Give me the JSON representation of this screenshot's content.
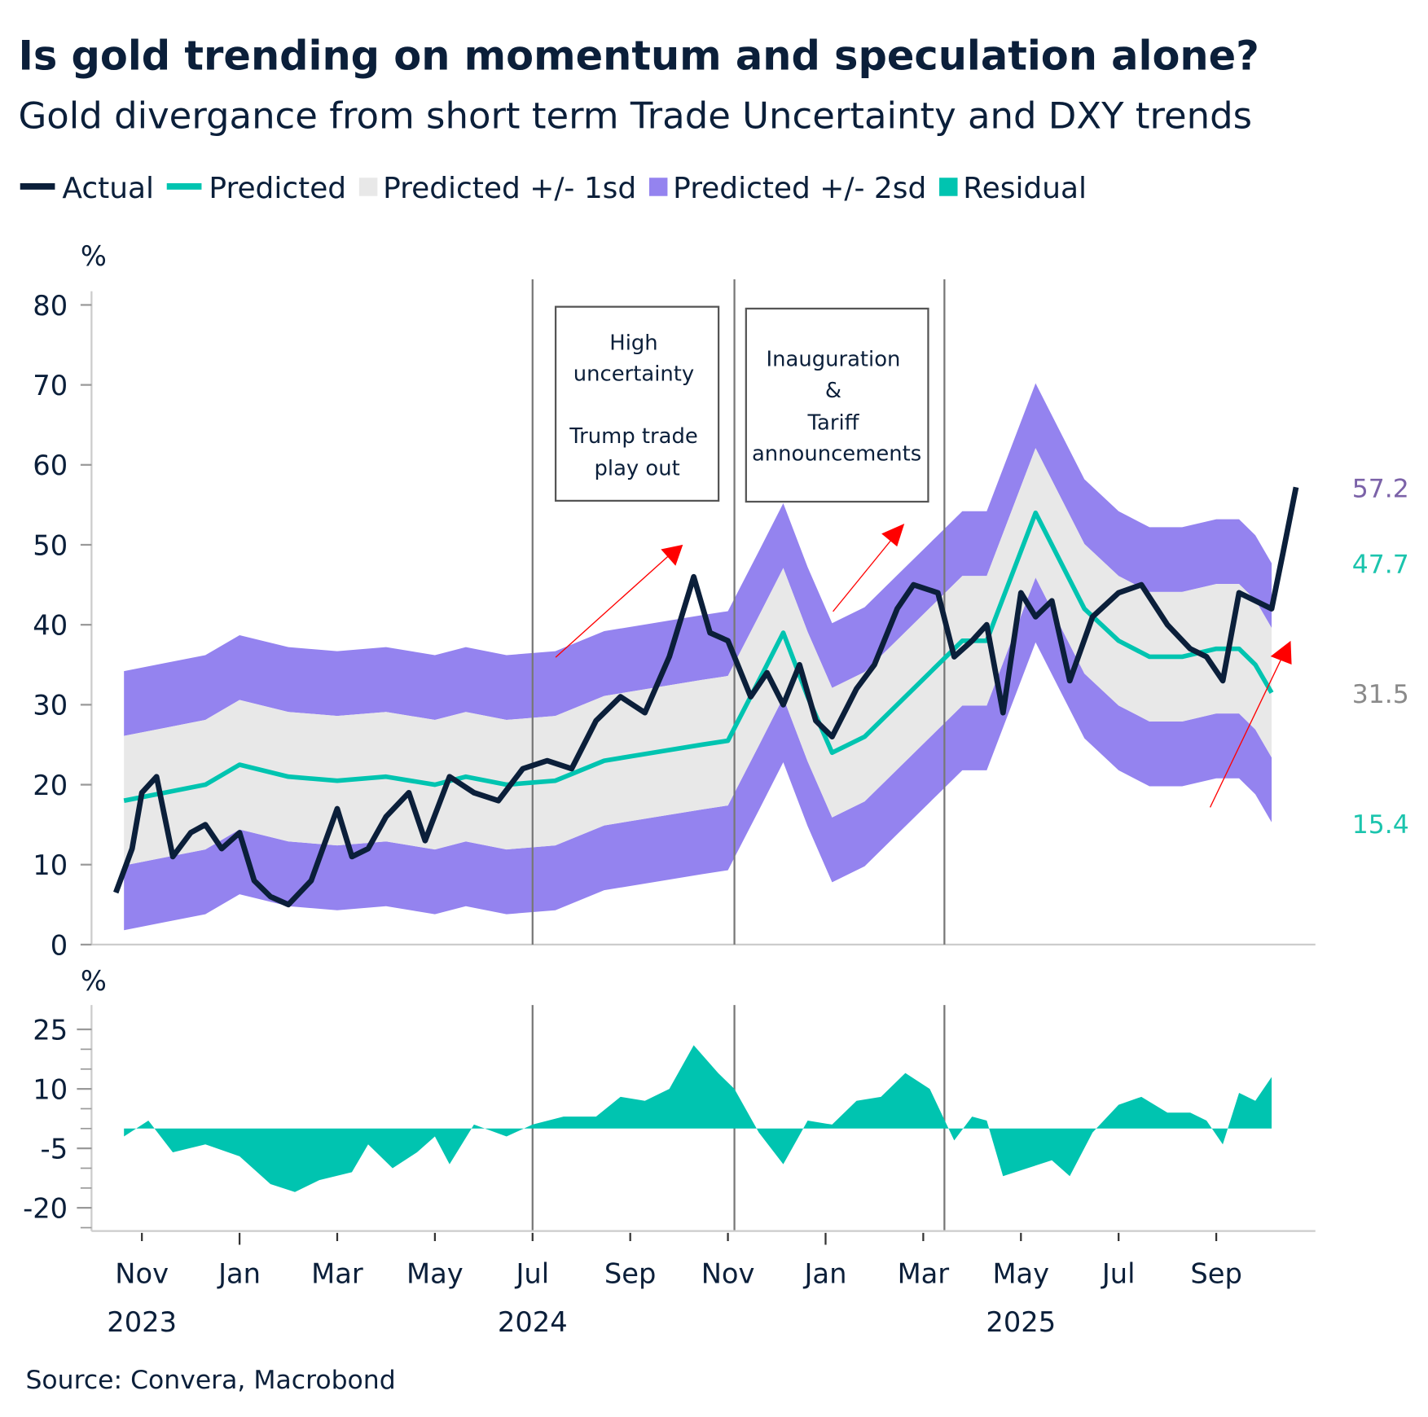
{
  "header": {
    "title": "Is gold trending on momentum and speculation alone?",
    "subtitle": "Gold divergance from short term Trade Uncertainty and DXY trends"
  },
  "legend": [
    {
      "label": "Actual",
      "color": "#0b1f3a",
      "shape": "line"
    },
    {
      "label": "Predicted",
      "color": "#00c4b0",
      "shape": "line"
    },
    {
      "label": "Predicted +/- 1sd",
      "color": "#e8e8e8",
      "shape": "square"
    },
    {
      "label": "Predicted +/- 2sd",
      "color": "#9483ef",
      "shape": "square"
    },
    {
      "label": "Residual",
      "color": "#00c4b0",
      "shape": "square"
    }
  ],
  "source": "Source: Convera, Macrobond",
  "chart_data": [
    {
      "type": "line",
      "panel": "main",
      "ylabel": "%",
      "ylim": [
        0,
        80
      ],
      "yticks": [
        "0",
        "10",
        "20",
        "30",
        "40",
        "50",
        "60",
        "70",
        "80"
      ],
      "xticks": [
        {
          "date": "2023-11-01",
          "label": "Nov",
          "year": "2023"
        },
        {
          "date": "2024-01-01",
          "label": "Jan"
        },
        {
          "date": "2024-03-01",
          "label": "Mar"
        },
        {
          "date": "2024-05-01",
          "label": "May"
        },
        {
          "date": "2024-07-01",
          "label": "Jul",
          "year": "2024"
        },
        {
          "date": "2024-09-01",
          "label": "Sep"
        },
        {
          "date": "2024-11-01",
          "label": "Nov"
        },
        {
          "date": "2025-01-01",
          "label": "Jan"
        },
        {
          "date": "2025-03-01",
          "label": "Mar"
        },
        {
          "date": "2025-05-01",
          "label": "May",
          "year": "2025"
        },
        {
          "date": "2025-07-01",
          "label": "Jul"
        },
        {
          "date": "2025-09-01",
          "label": "Sep"
        }
      ],
      "event_lines": [
        "2024-07-01",
        "2024-11-05",
        "2025-03-14"
      ],
      "annotations": [
        {
          "lines": [
            "High",
            "uncertainty",
            "",
            "Trump trade",
            "play out"
          ]
        },
        {
          "lines": [
            "Inauguration",
            "&",
            "Tariff",
            "announcements"
          ]
        }
      ],
      "end_labels": [
        {
          "text": "57.2",
          "color": "#7b62a8"
        },
        {
          "text": "47.7",
          "color": "#1bc4ad"
        },
        {
          "text": "31.5",
          "color": "#8a8a8a"
        },
        {
          "text": "15.4",
          "color": "#1bc4ad"
        }
      ],
      "sd": 8.1,
      "series": [
        {
          "name": "Actual",
          "color": "#0b1f3a",
          "points": [
            [
              "2023-10-15",
              6.5
            ],
            [
              "2023-10-25",
              12
            ],
            [
              "2023-11-01",
              19
            ],
            [
              "2023-11-10",
              21
            ],
            [
              "2023-11-20",
              11
            ],
            [
              "2023-12-01",
              14
            ],
            [
              "2023-12-10",
              15
            ],
            [
              "2023-12-20",
              12
            ],
            [
              "2024-01-01",
              14
            ],
            [
              "2024-01-10",
              8
            ],
            [
              "2024-01-20",
              6
            ],
            [
              "2024-02-01",
              5
            ],
            [
              "2024-02-15",
              8
            ],
            [
              "2024-03-01",
              17
            ],
            [
              "2024-03-10",
              11
            ],
            [
              "2024-03-20",
              12
            ],
            [
              "2024-04-01",
              16
            ],
            [
              "2024-04-15",
              19
            ],
            [
              "2024-04-25",
              13
            ],
            [
              "2024-05-10",
              21
            ],
            [
              "2024-05-25",
              19
            ],
            [
              "2024-06-10",
              18
            ],
            [
              "2024-06-25",
              22
            ],
            [
              "2024-07-10",
              23
            ],
            [
              "2024-07-25",
              22
            ],
            [
              "2024-08-10",
              28
            ],
            [
              "2024-08-25",
              31
            ],
            [
              "2024-09-10",
              29
            ],
            [
              "2024-09-25",
              36
            ],
            [
              "2024-10-10",
              46
            ],
            [
              "2024-10-20",
              39
            ],
            [
              "2024-11-01",
              38
            ],
            [
              "2024-11-15",
              31
            ],
            [
              "2024-11-25",
              34
            ],
            [
              "2024-12-05",
              30
            ],
            [
              "2024-12-15",
              35
            ],
            [
              "2024-12-25",
              28
            ],
            [
              "2025-01-05",
              26
            ],
            [
              "2025-01-20",
              32
            ],
            [
              "2025-02-01",
              35
            ],
            [
              "2025-02-15",
              42
            ],
            [
              "2025-02-25",
              45
            ],
            [
              "2025-03-10",
              44
            ],
            [
              "2025-03-20",
              36
            ],
            [
              "2025-04-01",
              38
            ],
            [
              "2025-04-10",
              40
            ],
            [
              "2025-04-20",
              29
            ],
            [
              "2025-05-01",
              44
            ],
            [
              "2025-05-10",
              41
            ],
            [
              "2025-05-20",
              43
            ],
            [
              "2025-06-01",
              33
            ],
            [
              "2025-06-15",
              41
            ],
            [
              "2025-07-01",
              44
            ],
            [
              "2025-07-15",
              45
            ],
            [
              "2025-08-01",
              40
            ],
            [
              "2025-08-15",
              37
            ],
            [
              "2025-08-25",
              36
            ],
            [
              "2025-09-05",
              33
            ],
            [
              "2025-09-15",
              44
            ],
            [
              "2025-09-25",
              43
            ],
            [
              "2025-10-05",
              42
            ],
            [
              "2025-10-12",
              49
            ],
            [
              "2025-10-20",
              57.2
            ]
          ]
        },
        {
          "name": "Predicted",
          "color": "#00c4b0",
          "points": [
            [
              "2023-10-20",
              18
            ],
            [
              "2023-11-15",
              19
            ],
            [
              "2023-12-10",
              20
            ],
            [
              "2024-01-01",
              22.5
            ],
            [
              "2024-02-01",
              21
            ],
            [
              "2024-03-01",
              20.5
            ],
            [
              "2024-04-01",
              21
            ],
            [
              "2024-05-01",
              20
            ],
            [
              "2024-05-20",
              21
            ],
            [
              "2024-06-15",
              20
            ],
            [
              "2024-07-15",
              20.5
            ],
            [
              "2024-08-15",
              23
            ],
            [
              "2024-09-15",
              24
            ],
            [
              "2024-10-15",
              25
            ],
            [
              "2024-11-01",
              25.5
            ],
            [
              "2024-11-20",
              33
            ],
            [
              "2024-12-05",
              39
            ],
            [
              "2024-12-20",
              31
            ],
            [
              "2025-01-05",
              24
            ],
            [
              "2025-01-25",
              26
            ],
            [
              "2025-02-15",
              30
            ],
            [
              "2025-03-10",
              35
            ],
            [
              "2025-03-25",
              38
            ],
            [
              "2025-04-10",
              38
            ],
            [
              "2025-04-25",
              46
            ],
            [
              "2025-05-10",
              54
            ],
            [
              "2025-05-25",
              48
            ],
            [
              "2025-06-10",
              42
            ],
            [
              "2025-07-01",
              38
            ],
            [
              "2025-07-20",
              36
            ],
            [
              "2025-08-10",
              36
            ],
            [
              "2025-09-01",
              37
            ],
            [
              "2025-09-15",
              37
            ],
            [
              "2025-09-25",
              35
            ],
            [
              "2025-10-05",
              31.5
            ]
          ]
        }
      ]
    },
    {
      "type": "area",
      "panel": "residual",
      "ylabel": "%",
      "ylim": [
        -25,
        30
      ],
      "yticks": [
        "25",
        "10",
        "-5",
        "-20"
      ],
      "series": [
        {
          "name": "Residual",
          "color": "#00c4b0",
          "points": [
            [
              "2023-10-20",
              -2
            ],
            [
              "2023-11-05",
              2
            ],
            [
              "2023-11-20",
              -6
            ],
            [
              "2023-12-10",
              -4
            ],
            [
              "2024-01-01",
              -7
            ],
            [
              "2024-01-20",
              -14
            ],
            [
              "2024-02-05",
              -16
            ],
            [
              "2024-02-20",
              -13
            ],
            [
              "2024-03-10",
              -11
            ],
            [
              "2024-03-20",
              -4
            ],
            [
              "2024-04-05",
              -10
            ],
            [
              "2024-04-20",
              -6
            ],
            [
              "2024-05-01",
              -2
            ],
            [
              "2024-05-10",
              -9
            ],
            [
              "2024-05-25",
              1
            ],
            [
              "2024-06-15",
              -2
            ],
            [
              "2024-07-01",
              1
            ],
            [
              "2024-07-20",
              3
            ],
            [
              "2024-08-10",
              3
            ],
            [
              "2024-08-25",
              8
            ],
            [
              "2024-09-10",
              7
            ],
            [
              "2024-09-25",
              10
            ],
            [
              "2024-10-10",
              21
            ],
            [
              "2024-10-25",
              14
            ],
            [
              "2024-11-05",
              10
            ],
            [
              "2024-11-20",
              -1
            ],
            [
              "2024-12-05",
              -9
            ],
            [
              "2024-12-20",
              2
            ],
            [
              "2025-01-05",
              1
            ],
            [
              "2025-01-20",
              7
            ],
            [
              "2025-02-05",
              8
            ],
            [
              "2025-02-20",
              14
            ],
            [
              "2025-03-05",
              10
            ],
            [
              "2025-03-20",
              -3
            ],
            [
              "2025-04-01",
              3
            ],
            [
              "2025-04-10",
              2
            ],
            [
              "2025-04-20",
              -12
            ],
            [
              "2025-05-05",
              -10
            ],
            [
              "2025-05-20",
              -8
            ],
            [
              "2025-06-01",
              -12
            ],
            [
              "2025-06-15",
              -1
            ],
            [
              "2025-07-01",
              6
            ],
            [
              "2025-07-15",
              8
            ],
            [
              "2025-08-01",
              4
            ],
            [
              "2025-08-15",
              4
            ],
            [
              "2025-08-25",
              2
            ],
            [
              "2025-09-05",
              -4
            ],
            [
              "2025-09-15",
              9
            ],
            [
              "2025-09-25",
              7
            ],
            [
              "2025-10-05",
              13
            ]
          ]
        }
      ]
    }
  ]
}
